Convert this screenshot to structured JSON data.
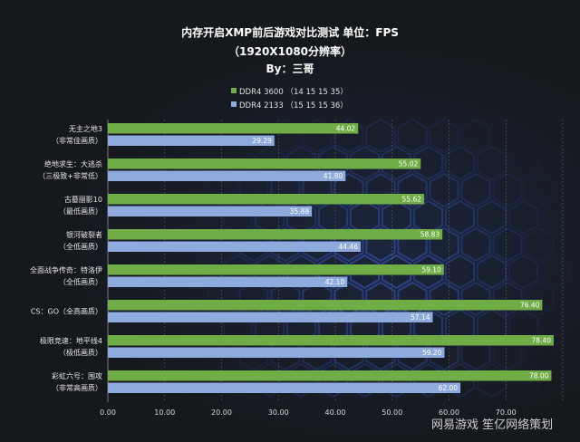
{
  "chart_data": {
    "type": "bar",
    "orientation": "horizontal",
    "title_lines": [
      "内存开启XMP前后游戏对比测试 单位：FPS",
      "（1920X1080分辨率）",
      "By：三哥"
    ],
    "categories": [
      [
        "无主之地3",
        "（非常佳画质）"
      ],
      [
        "绝地求生：大逃杀",
        "（三极致+非常低）"
      ],
      [
        "古墓丽影10",
        "（最低画质）"
      ],
      [
        "银河破裂者",
        "（全低画质）"
      ],
      [
        "全面战争传奇：特洛伊",
        "（全低画质）"
      ],
      [
        "CS：GO（全高画质）"
      ],
      [
        "极限竞速：地平线4",
        "（极低画质）"
      ],
      [
        "彩虹六号：围攻",
        "（非常高画质）"
      ]
    ],
    "series": [
      {
        "name": "DDR4 3600 （14 15 15 35）",
        "color": "#70ad47",
        "values": [
          44.02,
          55.02,
          55.62,
          58.83,
          59.1,
          76.4,
          78.4,
          78.0
        ],
        "labels": [
          "44.02",
          "55.02",
          "55.62",
          "58.83",
          "59.10",
          "76.40",
          "78.40",
          "78.00"
        ]
      },
      {
        "name": "DDR4 2133 （15 15 15 36）",
        "color": "#8faadc",
        "values": [
          29.29,
          41.8,
          35.88,
          44.46,
          42.1,
          57.14,
          59.2,
          62.0
        ],
        "labels": [
          "29.29",
          "41.80",
          "35.88",
          "44.46",
          "42.10",
          "57.14",
          "59.20",
          "62.00"
        ]
      }
    ],
    "xlim": [
      0,
      80
    ],
    "xticks": [
      "0.00",
      "10.00",
      "20.00",
      "30.00",
      "40.00",
      "50.00",
      "60.00",
      "70.00"
    ],
    "grid": true,
    "legend": "top-center"
  },
  "watermark": "网易游戏 笙亿网络策划"
}
